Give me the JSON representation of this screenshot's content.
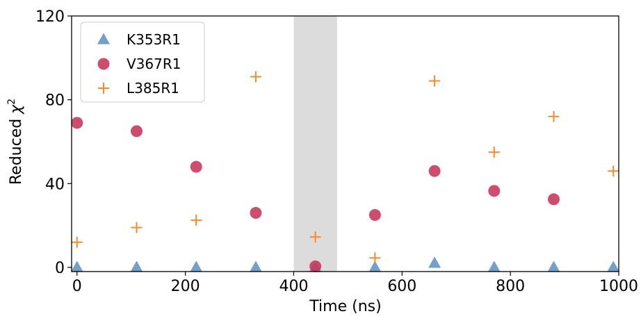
{
  "chart_data": {
    "type": "scatter",
    "xlabel": "Time (ns)",
    "ylabel_prefix": "Reduced ",
    "ylabel_symbol": "χ",
    "ylabel_superscript": "2",
    "xlim": [
      -10,
      1000
    ],
    "ylim": [
      -2,
      120
    ],
    "xticks": [
      0,
      200,
      400,
      600,
      800,
      1000
    ],
    "yticks": [
      0,
      40,
      80,
      120
    ],
    "xtick_labels": [
      "0",
      "200",
      "400",
      "600",
      "800",
      "1000"
    ],
    "ytick_labels": [
      "0",
      "40",
      "80",
      "120"
    ],
    "shaded_region": {
      "x": [
        400,
        480
      ],
      "color": "#dcdcdc"
    },
    "legend_position": "top-left",
    "grid": false,
    "series": [
      {
        "name": "K353R1",
        "marker": "triangle",
        "color": "#5b8fbf",
        "x": [
          0,
          110,
          220,
          330,
          440,
          550,
          660,
          770,
          880,
          990
        ],
        "y": [
          0,
          0,
          0,
          0,
          0,
          0,
          2,
          0,
          0,
          0
        ]
      },
      {
        "name": "V367R1",
        "marker": "circle",
        "color": "#c73a5e",
        "x": [
          0,
          110,
          220,
          330,
          440,
          550,
          660,
          770,
          880
        ],
        "y": [
          69,
          65,
          48,
          26,
          0.5,
          25,
          46,
          36.5,
          32.5
        ]
      },
      {
        "name": "L385R1",
        "marker": "plus",
        "color": "#f58a2c",
        "x": [
          0,
          110,
          220,
          330,
          440,
          550,
          660,
          770,
          880,
          990
        ],
        "y": [
          12,
          19,
          22.5,
          91,
          14.5,
          4.5,
          89,
          55,
          72,
          46
        ]
      }
    ]
  }
}
